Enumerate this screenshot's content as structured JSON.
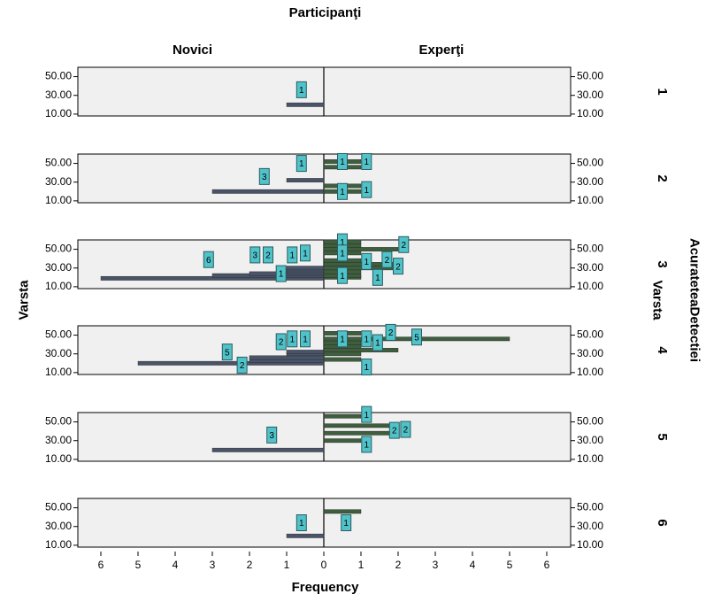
{
  "chart_data": {
    "type": "bar",
    "title": "Participanţi",
    "column_facet": {
      "variable": "Participanţi",
      "levels": [
        "Novici",
        "Experţi"
      ]
    },
    "row_facet": {
      "variable": "AcurateteaDetectiei",
      "levels": [
        "1",
        "2",
        "3",
        "4",
        "5",
        "6"
      ]
    },
    "xlabel": "Frequency",
    "ylabel": "Varsta",
    "ylabel_right": "Varsta",
    "x_ticks": [
      "6",
      "5",
      "4",
      "3",
      "2",
      "1",
      "0",
      "1",
      "2",
      "3",
      "4",
      "5",
      "6"
    ],
    "y_ticks": [
      "50.00",
      "30.00",
      "10.00"
    ],
    "ylim": [
      8,
      60
    ],
    "xlim": [
      -6.5,
      6.5
    ],
    "colors": {
      "novici_bar": "#4a5468",
      "experti_bar": "#3e5e3e",
      "label_fill": "#4fc3c9",
      "label_border": "#2b5c5f",
      "panel_bg": "#f0f0f0",
      "zero_line": "#000000"
    },
    "bars": [
      {
        "facet": "1",
        "group": "Novici",
        "age": 20,
        "freq": 1
      },
      {
        "facet": "2",
        "group": "Novici",
        "age": 20,
        "freq": 3
      },
      {
        "facet": "2",
        "group": "Novici",
        "age": 32,
        "freq": 1
      },
      {
        "facet": "2",
        "group": "Experţi",
        "age": 20,
        "freq": 1
      },
      {
        "facet": "2",
        "group": "Experţi",
        "age": 26,
        "freq": 1
      },
      {
        "facet": "2",
        "group": "Experţi",
        "age": 46,
        "freq": 1
      },
      {
        "facet": "2",
        "group": "Experţi",
        "age": 52,
        "freq": 1
      },
      {
        "facet": "3",
        "group": "Novici",
        "age": 19,
        "freq": 6
      },
      {
        "facet": "3",
        "group": "Novici",
        "age": 22,
        "freq": 3
      },
      {
        "facet": "3",
        "group": "Novici",
        "age": 24,
        "freq": 2
      },
      {
        "facet": "3",
        "group": "Novici",
        "age": 26,
        "freq": 1
      },
      {
        "facet": "3",
        "group": "Novici",
        "age": 28,
        "freq": 1
      },
      {
        "facet": "3",
        "group": "Novici",
        "age": 30,
        "freq": 1
      },
      {
        "facet": "3",
        "group": "Experţi",
        "age": 20,
        "freq": 1
      },
      {
        "facet": "3",
        "group": "Experţi",
        "age": 22,
        "freq": 1
      },
      {
        "facet": "3",
        "group": "Experţi",
        "age": 26,
        "freq": 1
      },
      {
        "facet": "3",
        "group": "Experţi",
        "age": 30,
        "freq": 2
      },
      {
        "facet": "3",
        "group": "Experţi",
        "age": 34,
        "freq": 2
      },
      {
        "facet": "3",
        "group": "Experţi",
        "age": 38,
        "freq": 1
      },
      {
        "facet": "3",
        "group": "Experţi",
        "age": 46,
        "freq": 1
      },
      {
        "facet": "3",
        "group": "Experţi",
        "age": 50,
        "freq": 2
      },
      {
        "facet": "3",
        "group": "Experţi",
        "age": 54,
        "freq": 1
      },
      {
        "facet": "3",
        "group": "Experţi",
        "age": 58,
        "freq": 1
      },
      {
        "facet": "4",
        "group": "Novici",
        "age": 20,
        "freq": 5
      },
      {
        "facet": "4",
        "group": "Novici",
        "age": 23,
        "freq": 2
      },
      {
        "facet": "4",
        "group": "Novici",
        "age": 26,
        "freq": 2
      },
      {
        "facet": "4",
        "group": "Novici",
        "age": 30,
        "freq": 1
      },
      {
        "facet": "4",
        "group": "Novici",
        "age": 32,
        "freq": 1
      },
      {
        "facet": "4",
        "group": "Experţi",
        "age": 24,
        "freq": 1
      },
      {
        "facet": "4",
        "group": "Experţi",
        "age": 30,
        "freq": 1
      },
      {
        "facet": "4",
        "group": "Experţi",
        "age": 34,
        "freq": 2
      },
      {
        "facet": "4",
        "group": "Experţi",
        "age": 38,
        "freq": 1
      },
      {
        "facet": "4",
        "group": "Experţi",
        "age": 42,
        "freq": 1
      },
      {
        "facet": "4",
        "group": "Experţi",
        "age": 46,
        "freq": 5
      },
      {
        "facet": "4",
        "group": "Experţi",
        "age": 52,
        "freq": 1
      },
      {
        "facet": "5",
        "group": "Novici",
        "age": 20,
        "freq": 3
      },
      {
        "facet": "5",
        "group": "Experţi",
        "age": 30,
        "freq": 1
      },
      {
        "facet": "5",
        "group": "Experţi",
        "age": 38,
        "freq": 2
      },
      {
        "facet": "5",
        "group": "Experţi",
        "age": 46,
        "freq": 2
      },
      {
        "facet": "5",
        "group": "Experţi",
        "age": 56,
        "freq": 1
      },
      {
        "facet": "6",
        "group": "Novici",
        "age": 20,
        "freq": 1
      },
      {
        "facet": "6",
        "group": "Experţi",
        "age": 46,
        "freq": 1
      }
    ],
    "labels": [
      {
        "facet": "1",
        "text": "1",
        "fx": -0.6,
        "age": 36
      },
      {
        "facet": "2",
        "text": "3",
        "fx": -1.6,
        "age": 36
      },
      {
        "facet": "2",
        "text": "1",
        "fx": -0.6,
        "age": 50
      },
      {
        "facet": "2",
        "text": "1",
        "fx": 0.5,
        "age": 52
      },
      {
        "facet": "2",
        "text": "1",
        "fx": 1.15,
        "age": 52
      },
      {
        "facet": "2",
        "text": "1",
        "fx": 0.5,
        "age": 20
      },
      {
        "facet": "2",
        "text": "1",
        "fx": 1.15,
        "age": 22
      },
      {
        "facet": "3",
        "text": "6",
        "fx": -3.1,
        "age": 39
      },
      {
        "facet": "3",
        "text": "3",
        "fx": -1.85,
        "age": 44
      },
      {
        "facet": "3",
        "text": "2",
        "fx": -1.5,
        "age": 44
      },
      {
        "facet": "3",
        "text": "1",
        "fx": -1.15,
        "age": 24
      },
      {
        "facet": "3",
        "text": "1",
        "fx": -0.85,
        "age": 44
      },
      {
        "facet": "3",
        "text": "1",
        "fx": -0.5,
        "age": 46
      },
      {
        "facet": "3",
        "text": "1",
        "fx": 0.5,
        "age": 58
      },
      {
        "facet": "3",
        "text": "1",
        "fx": 0.5,
        "age": 46
      },
      {
        "facet": "3",
        "text": "1",
        "fx": 0.5,
        "age": 22
      },
      {
        "facet": "3",
        "text": "1",
        "fx": 1.15,
        "age": 37
      },
      {
        "facet": "3",
        "text": "1",
        "fx": 1.45,
        "age": 20
      },
      {
        "facet": "3",
        "text": "2",
        "fx": 1.7,
        "age": 39
      },
      {
        "facet": "3",
        "text": "2",
        "fx": 2.15,
        "age": 55
      },
      {
        "facet": "3",
        "text": "2",
        "fx": 2.0,
        "age": 32
      },
      {
        "facet": "4",
        "text": "5",
        "fx": -2.6,
        "age": 32
      },
      {
        "facet": "4",
        "text": "2",
        "fx": -2.2,
        "age": 18
      },
      {
        "facet": "4",
        "text": "2",
        "fx": -1.15,
        "age": 43
      },
      {
        "facet": "4",
        "text": "1",
        "fx": -0.85,
        "age": 46
      },
      {
        "facet": "4",
        "text": "1",
        "fx": -0.5,
        "age": 46
      },
      {
        "facet": "4",
        "text": "1",
        "fx": 0.5,
        "age": 46
      },
      {
        "facet": "4",
        "text": "1",
        "fx": 1.15,
        "age": 46
      },
      {
        "facet": "4",
        "text": "1",
        "fx": 1.45,
        "age": 42
      },
      {
        "facet": "4",
        "text": "2",
        "fx": 1.8,
        "age": 53
      },
      {
        "facet": "4",
        "text": "5",
        "fx": 2.5,
        "age": 48
      },
      {
        "facet": "4",
        "text": "1",
        "fx": 1.15,
        "age": 16
      },
      {
        "facet": "5",
        "text": "3",
        "fx": -1.4,
        "age": 36
      },
      {
        "facet": "5",
        "text": "1",
        "fx": 1.15,
        "age": 58
      },
      {
        "facet": "5",
        "text": "2",
        "fx": 1.9,
        "age": 41
      },
      {
        "facet": "5",
        "text": "2",
        "fx": 2.2,
        "age": 42
      },
      {
        "facet": "5",
        "text": "1",
        "fx": 1.15,
        "age": 26
      },
      {
        "facet": "6",
        "text": "1",
        "fx": -0.6,
        "age": 34
      },
      {
        "facet": "6",
        "text": "1",
        "fx": 0.6,
        "age": 34
      }
    ]
  }
}
